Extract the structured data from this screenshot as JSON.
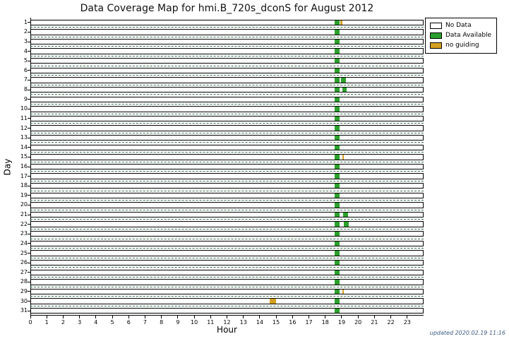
{
  "updated_note": "updated 2020.02.19 11:16",
  "chart_data": {
    "type": "heatmap",
    "title": "Data Coverage Map for hmi.B_720s_dconS for August 2012",
    "xlabel": "Hour",
    "ylabel": "Day",
    "xlim": [
      0,
      24
    ],
    "x_ticks": [
      0,
      1,
      2,
      3,
      4,
      5,
      6,
      7,
      8,
      9,
      10,
      11,
      12,
      13,
      14,
      15,
      16,
      17,
      18,
      19,
      20,
      21,
      22,
      23
    ],
    "grid": "dashed horizontal lines between day rows",
    "grid_color": "#336b4b",
    "legend_position": "top-right outside plot",
    "status_colors": {
      "no_data": "#ffffff",
      "data": "#2ca02c",
      "no_guiding": "#d5a021"
    },
    "legend": [
      {
        "label": "No Data",
        "status": "no_data",
        "color": "#ffffff"
      },
      {
        "label": "Data Available",
        "status": "data",
        "color": "#2ca02c"
      },
      {
        "label": "no guiding",
        "status": "no_guiding",
        "color": "#d5a021"
      }
    ],
    "days": [
      {
        "day": 1,
        "segments": [
          {
            "start": 18.6,
            "end": 18.9,
            "status": "data"
          },
          {
            "start": 18.95,
            "end": 19.05,
            "status": "no_guiding"
          }
        ]
      },
      {
        "day": 2,
        "segments": [
          {
            "start": 18.6,
            "end": 18.9,
            "status": "data"
          }
        ]
      },
      {
        "day": 3,
        "segments": [
          {
            "start": 18.6,
            "end": 18.9,
            "status": "data"
          }
        ]
      },
      {
        "day": 4,
        "segments": [
          {
            "start": 18.6,
            "end": 18.9,
            "status": "data"
          }
        ]
      },
      {
        "day": 5,
        "segments": [
          {
            "start": 18.6,
            "end": 18.9,
            "status": "data"
          }
        ]
      },
      {
        "day": 6,
        "segments": [
          {
            "start": 18.6,
            "end": 18.9,
            "status": "data"
          }
        ]
      },
      {
        "day": 7,
        "segments": [
          {
            "start": 18.6,
            "end": 18.9,
            "status": "data"
          },
          {
            "start": 19.0,
            "end": 19.3,
            "status": "data"
          }
        ]
      },
      {
        "day": 8,
        "segments": [
          {
            "start": 18.6,
            "end": 18.9,
            "status": "data"
          },
          {
            "start": 19.05,
            "end": 19.35,
            "status": "data"
          }
        ]
      },
      {
        "day": 9,
        "segments": [
          {
            "start": 18.6,
            "end": 18.9,
            "status": "data"
          }
        ]
      },
      {
        "day": 10,
        "segments": [
          {
            "start": 18.6,
            "end": 18.9,
            "status": "data"
          }
        ]
      },
      {
        "day": 11,
        "segments": [
          {
            "start": 18.6,
            "end": 18.9,
            "status": "data"
          }
        ]
      },
      {
        "day": 12,
        "segments": [
          {
            "start": 18.6,
            "end": 18.9,
            "status": "data"
          }
        ]
      },
      {
        "day": 13,
        "segments": [
          {
            "start": 18.6,
            "end": 18.9,
            "status": "data"
          }
        ]
      },
      {
        "day": 14,
        "segments": [
          {
            "start": 18.6,
            "end": 18.9,
            "status": "data"
          }
        ]
      },
      {
        "day": 15,
        "segments": [
          {
            "start": 18.6,
            "end": 18.9,
            "status": "data"
          },
          {
            "start": 19.08,
            "end": 19.14,
            "status": "no_guiding"
          }
        ]
      },
      {
        "day": 16,
        "segments": [
          {
            "start": 18.6,
            "end": 18.9,
            "status": "data"
          }
        ]
      },
      {
        "day": 17,
        "segments": [
          {
            "start": 18.6,
            "end": 18.9,
            "status": "data"
          }
        ]
      },
      {
        "day": 18,
        "segments": [
          {
            "start": 18.6,
            "end": 18.9,
            "status": "data"
          }
        ]
      },
      {
        "day": 19,
        "segments": [
          {
            "start": 18.6,
            "end": 18.9,
            "status": "data"
          }
        ]
      },
      {
        "day": 20,
        "segments": [
          {
            "start": 18.6,
            "end": 18.9,
            "status": "data"
          }
        ]
      },
      {
        "day": 21,
        "segments": [
          {
            "start": 18.6,
            "end": 18.9,
            "status": "data"
          },
          {
            "start": 19.1,
            "end": 19.4,
            "status": "data"
          }
        ]
      },
      {
        "day": 22,
        "segments": [
          {
            "start": 18.6,
            "end": 18.9,
            "status": "data"
          },
          {
            "start": 19.15,
            "end": 19.45,
            "status": "data"
          }
        ]
      },
      {
        "day": 23,
        "segments": [
          {
            "start": 18.6,
            "end": 18.9,
            "status": "data"
          }
        ]
      },
      {
        "day": 24,
        "segments": [
          {
            "start": 18.6,
            "end": 18.9,
            "status": "data"
          }
        ]
      },
      {
        "day": 25,
        "segments": [
          {
            "start": 18.6,
            "end": 18.9,
            "status": "data"
          }
        ]
      },
      {
        "day": 26,
        "segments": [
          {
            "start": 18.6,
            "end": 18.9,
            "status": "data"
          }
        ]
      },
      {
        "day": 27,
        "segments": [
          {
            "start": 18.6,
            "end": 18.9,
            "status": "data"
          }
        ]
      },
      {
        "day": 28,
        "segments": [
          {
            "start": 18.6,
            "end": 18.9,
            "status": "data"
          }
        ]
      },
      {
        "day": 29,
        "segments": [
          {
            "start": 18.6,
            "end": 18.9,
            "status": "data"
          },
          {
            "start": 19.08,
            "end": 19.14,
            "status": "no_guiding"
          }
        ]
      },
      {
        "day": 30,
        "segments": [
          {
            "start": 14.6,
            "end": 15.0,
            "status": "no_guiding"
          },
          {
            "start": 18.6,
            "end": 18.9,
            "status": "data"
          }
        ]
      },
      {
        "day": 31,
        "segments": [
          {
            "start": 18.6,
            "end": 18.9,
            "status": "data"
          }
        ]
      }
    ]
  }
}
